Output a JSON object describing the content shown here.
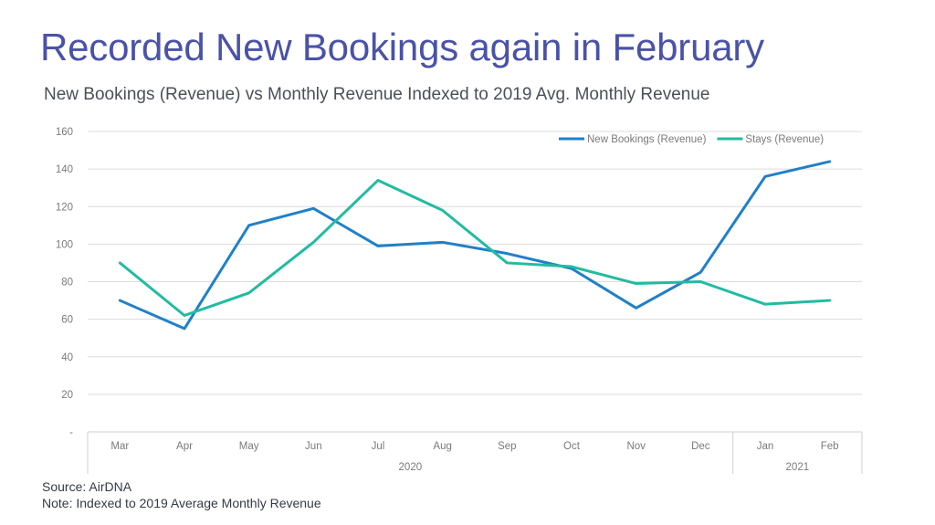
{
  "title": "Recorded New Bookings again in February",
  "subtitle": "New Bookings (Revenue) vs Monthly Revenue Indexed to 2019 Avg. Monthly Revenue",
  "footer": {
    "source": "Source: AirDNA",
    "note": "Note: Indexed to 2019 Average Monthly Revenue"
  },
  "colors": {
    "title": "#4a52a8",
    "new_bookings": "#1f80c9",
    "stays": "#22bba1"
  },
  "chart_data": {
    "type": "line",
    "categories": [
      "Mar",
      "Apr",
      "May",
      "Jun",
      "Jul",
      "Aug",
      "Sep",
      "Oct",
      "Nov",
      "Dec",
      "Jan",
      "Feb"
    ],
    "year_groups": [
      {
        "label": "2020",
        "from": 0,
        "to": 9
      },
      {
        "label": "2021",
        "from": 10,
        "to": 11
      }
    ],
    "ylim": [
      0,
      160
    ],
    "yticks": [
      0,
      20,
      40,
      60,
      80,
      100,
      120,
      140,
      160
    ],
    "ytick_labels": [
      "-",
      "20",
      "40",
      "60",
      "80",
      "100",
      "120",
      "140",
      "160"
    ],
    "grid": true,
    "legend_position": "top-right",
    "series": [
      {
        "name": "New Bookings (Revenue)",
        "color": "#1f80c9",
        "values": [
          70,
          55,
          110,
          119,
          99,
          101,
          95,
          87,
          66,
          85,
          136,
          144
        ]
      },
      {
        "name": "Stays (Revenue)",
        "color": "#22bba1",
        "values": [
          90,
          62,
          74,
          101,
          134,
          118,
          90,
          88,
          79,
          80,
          68,
          70
        ]
      }
    ]
  }
}
